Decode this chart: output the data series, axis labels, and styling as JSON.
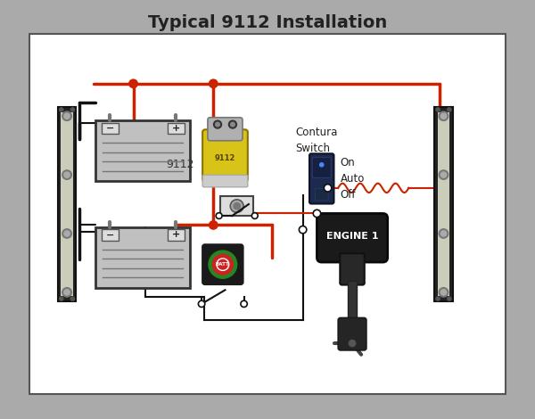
{
  "title": "Typical 9112 Installation",
  "title_fontsize": 14,
  "bg_outer": "#aaaaaa",
  "bg_inner": "#ffffff",
  "wire_red": "#cc2200",
  "wire_black": "#111111",
  "battery_fill": "#c0c0c0",
  "battery_border": "#444444",
  "bus_bar_dark": "#222222",
  "bus_bar_light": "#ccccbb",
  "relay_yellow": "#d4c020",
  "relay_grey": "#aaaaaa",
  "contura_dark": "#222244",
  "engine_dark": "#1a1a1a",
  "text_color": "#222222",
  "label_9112": "9112",
  "label_contura_line1": "Contura",
  "label_contura_line2": "Switch",
  "label_on": "On",
  "label_auto": "Auto",
  "label_off": "Off",
  "label_engine": "ENGINE 1",
  "lw_main": 2.5,
  "lw_thin": 1.5
}
